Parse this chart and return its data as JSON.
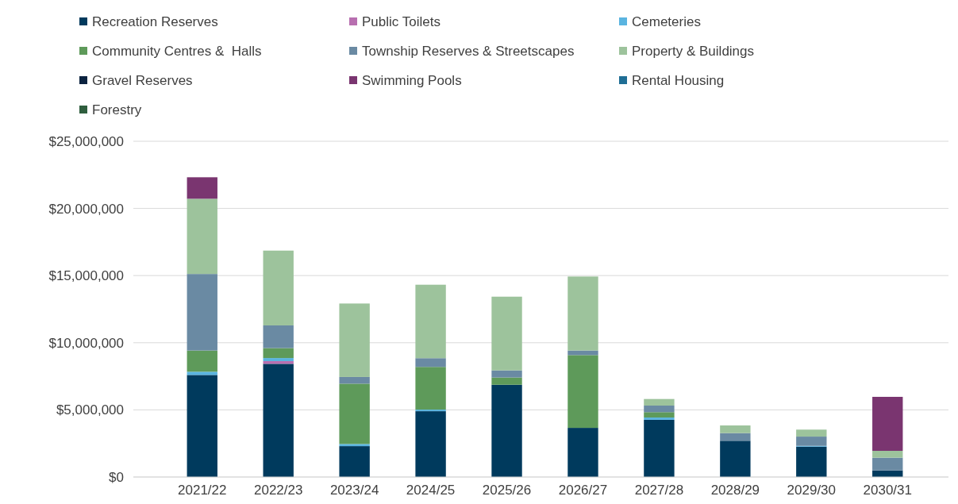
{
  "chart_data": {
    "type": "bar",
    "stacked": true,
    "legend": "top",
    "grid": "y",
    "categories": [
      "2021/22",
      "2022/23",
      "2023/24",
      "2024/25",
      "2025/26",
      "2026/27",
      "2027/28",
      "2028/29",
      "2029/30",
      "2030/31"
    ],
    "ylim": [
      0,
      25000000
    ],
    "yticks": [
      {
        "value": 0,
        "label": "$0"
      },
      {
        "value": 5000000,
        "label": "$5,000,000"
      },
      {
        "value": 10000000,
        "label": "$10,000,000"
      },
      {
        "value": 15000000,
        "label": "$15,000,000"
      },
      {
        "value": 20000000,
        "label": "$20,000,000"
      },
      {
        "value": 25000000,
        "label": "$25,000,000"
      }
    ],
    "series": [
      {
        "name": "Recreation Reserves",
        "color": "#003a5d",
        "values": [
          7600000,
          8430000,
          2300000,
          4900000,
          6870000,
          3660000,
          4260000,
          2700000,
          2260000,
          490000
        ]
      },
      {
        "name": "Public Toilets",
        "color": "#b86fb0",
        "values": [
          0,
          200000,
          0,
          0,
          0,
          0,
          0,
          0,
          0,
          0
        ]
      },
      {
        "name": "Cemeteries",
        "color": "#5ab4e0",
        "values": [
          240000,
          230000,
          160000,
          120000,
          0,
          0,
          170000,
          0,
          60000,
          0
        ]
      },
      {
        "name": "Community Centres &  Halls",
        "color": "#5e9a5a",
        "values": [
          1580000,
          740000,
          4490000,
          3180000,
          540000,
          5420000,
          400000,
          0,
          0,
          0
        ]
      },
      {
        "name": "Township Reserves & Streetscapes",
        "color": "#6a8aa3",
        "values": [
          5700000,
          1690000,
          500000,
          650000,
          530000,
          340000,
          490000,
          570000,
          690000,
          950000
        ]
      },
      {
        "name": "Property & Buildings",
        "color": "#9dc39c",
        "values": [
          5600000,
          5570000,
          5470000,
          5470000,
          5490000,
          5510000,
          490000,
          570000,
          520000,
          510000
        ]
      },
      {
        "name": "Gravel Reserves",
        "color": "#0b2340",
        "values": [
          0,
          0,
          0,
          0,
          0,
          0,
          0,
          0,
          0,
          0
        ]
      },
      {
        "name": "Swimming Pools",
        "color": "#7a3570",
        "values": [
          1600000,
          0,
          0,
          0,
          0,
          0,
          0,
          0,
          0,
          4020000
        ]
      },
      {
        "name": "Rental Housing",
        "color": "#1f6e95",
        "values": [
          0,
          0,
          0,
          0,
          0,
          0,
          0,
          0,
          0,
          0
        ]
      },
      {
        "name": "Forestry",
        "color": "#2f5e3e",
        "values": [
          0,
          0,
          0,
          0,
          0,
          0,
          0,
          0,
          0,
          0
        ]
      }
    ]
  }
}
